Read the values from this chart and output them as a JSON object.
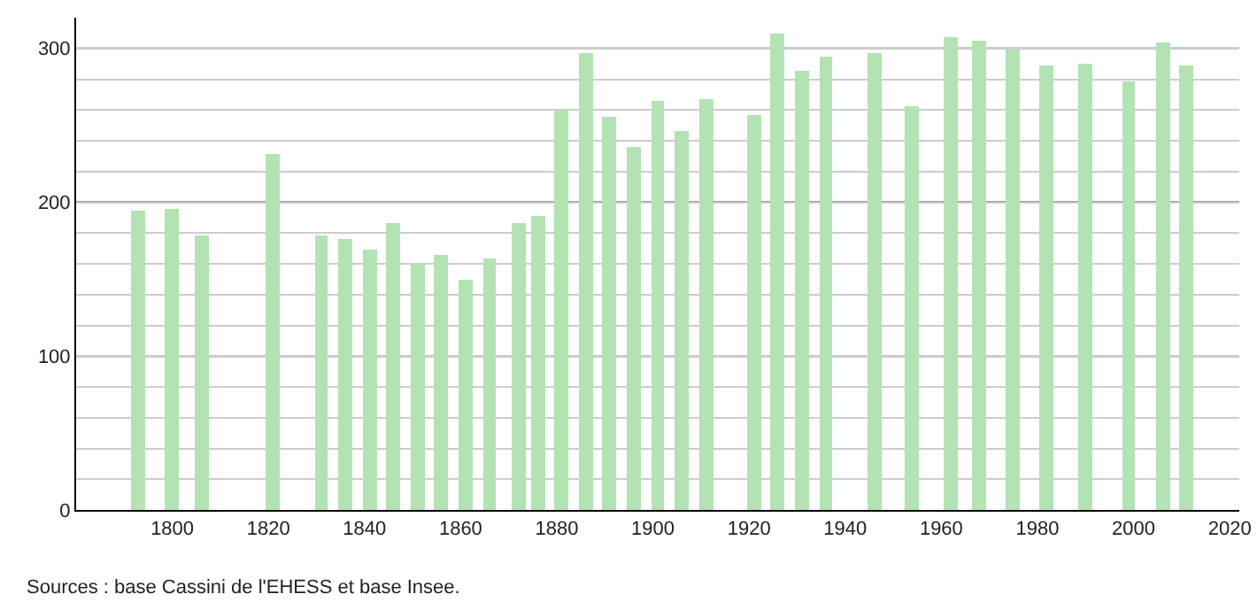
{
  "chart_data": {
    "type": "bar",
    "x": [
      1793,
      1800,
      1806,
      1821,
      1831,
      1836,
      1841,
      1846,
      1851,
      1856,
      1861,
      1866,
      1872,
      1876,
      1881,
      1886,
      1891,
      1896,
      1901,
      1906,
      1911,
      1921,
      1926,
      1931,
      1936,
      1946,
      1954,
      1962,
      1968,
      1975,
      1982,
      1990,
      1999,
      2006,
      2011
    ],
    "values": [
      195,
      196,
      178,
      231,
      178,
      176,
      169,
      187,
      160,
      166,
      150,
      164,
      187,
      191,
      260,
      297,
      255,
      236,
      266,
      246,
      267,
      257,
      310,
      285,
      295,
      297,
      263,
      307,
      305,
      299,
      289,
      290,
      278,
      304,
      289
    ],
    "color": "#b3e2b3",
    "xlim": [
      1780,
      2022
    ],
    "xticks": [
      1800,
      1820,
      1840,
      1860,
      1880,
      1900,
      1920,
      1940,
      1960,
      1980,
      2000,
      2020
    ],
    "ylim": [
      0,
      320
    ],
    "yticks": [
      0,
      {
        "value": 20,
        "label": null
      },
      {
        "value": 40,
        "label": null
      },
      {
        "value": 60,
        "label": null
      },
      {
        "value": 80,
        "label": null
      },
      100,
      {
        "value": 120,
        "label": null
      },
      {
        "value": 140,
        "label": null
      },
      {
        "value": 160,
        "label": null
      },
      {
        "value": 180,
        "label": null
      },
      200,
      {
        "value": 220,
        "label": null
      },
      {
        "value": 240,
        "label": null
      },
      {
        "value": 260,
        "label": null
      },
      {
        "value": 280,
        "label": null
      },
      300
    ],
    "grid": "y",
    "annotations": [
      "Sources : base Cassini de l'EHESS et base Insee."
    ]
  }
}
